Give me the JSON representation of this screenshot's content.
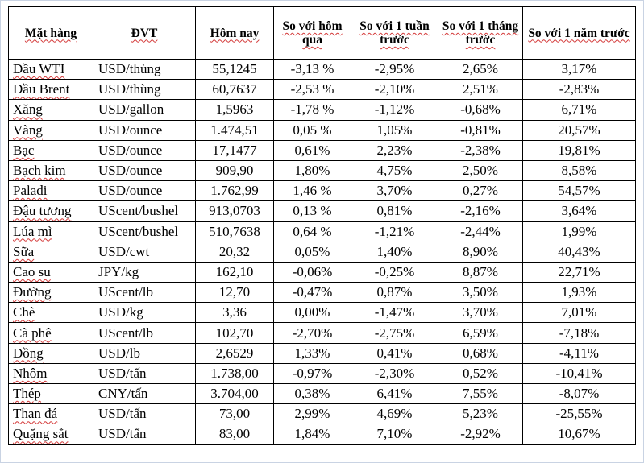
{
  "columns": [
    "Mặt hàng",
    "ĐVT",
    "Hôm nay",
    "So với hôm qua",
    "So với 1 tuần trước",
    "So với 1 tháng trước",
    "So với 1 năm trước"
  ],
  "rows": [
    [
      "Dầu WTI",
      "USD/thùng",
      "55,1245",
      "-3,13 %",
      "-2,95%",
      "2,65%",
      "3,17%"
    ],
    [
      "Dầu Brent",
      "USD/thùng",
      "60,7637",
      "-2,53 %",
      "-2,10%",
      "2,51%",
      "-2,83%"
    ],
    [
      "Xăng",
      "USD/gallon",
      "1,5963",
      "-1,78 %",
      "-1,12%",
      "-0,68%",
      "6,71%"
    ],
    [
      "Vàng",
      "USD/ounce",
      "1.474,51",
      "0,05 %",
      "1,05%",
      "-0,81%",
      "20,57%"
    ],
    [
      "Bạc",
      "USD/ounce",
      "17,1477",
      "0,61%",
      "2,23%",
      "-2,38%",
      "19,81%"
    ],
    [
      "Bạch kim",
      "USD/ounce",
      "909,90",
      "1,80%",
      "4,75%",
      "2,50%",
      "8,58%"
    ],
    [
      "Paladi",
      "USD/ounce",
      "1.762,99",
      "1,46 %",
      "3,70%",
      "0,27%",
      "54,57%"
    ],
    [
      "Đậu tương",
      "UScent/bushel",
      "913,0703",
      "0,13 %",
      "0,81%",
      "-2,16%",
      "3,64%"
    ],
    [
      "Lúa mì",
      "UScent/bushel",
      "510,7638",
      "0,64 %",
      "-1,21%",
      "-2,44%",
      "1,99%"
    ],
    [
      "Sữa",
      "USD/cwt",
      "20,32",
      "0,05%",
      "1,40%",
      "8,90%",
      "40,43%"
    ],
    [
      "Cao su",
      "JPY/kg",
      "162,10",
      "-0,06%",
      "-0,25%",
      "8,87%",
      "22,71%"
    ],
    [
      "Đường",
      "UScent/lb",
      "12,70",
      "-0,47%",
      "0,87%",
      "3,50%",
      "1,93%"
    ],
    [
      "Chè",
      "USD/kg",
      "3,36",
      "0,00%",
      "-1,47%",
      "3,70%",
      "7,01%"
    ],
    [
      "Cà phê",
      "UScent/lb",
      "102,70",
      "-2,70%",
      "-2,75%",
      "6,59%",
      "-7,18%"
    ],
    [
      "Đồng",
      "USD/lb",
      "2,6529",
      "1,33%",
      "0,41%",
      "0,68%",
      "-4,11%"
    ],
    [
      "Nhôm",
      "USD/tấn",
      "1.738,00",
      "-0,97%",
      "-2,30%",
      "0,52%",
      "-10,41%"
    ],
    [
      "Thép",
      "CNY/tấn",
      "3.704,00",
      "0,38%",
      "6,41%",
      "7,55%",
      "-8,07%"
    ],
    [
      "Than đá",
      "USD/tấn",
      "73,00",
      "2,99%",
      "4,69%",
      "5,23%",
      "-25,55%"
    ],
    [
      "Quặng sắt",
      "USD/tấn",
      "83,00",
      "1,84%",
      "7,10%",
      "-2,92%",
      "10,67%"
    ]
  ]
}
